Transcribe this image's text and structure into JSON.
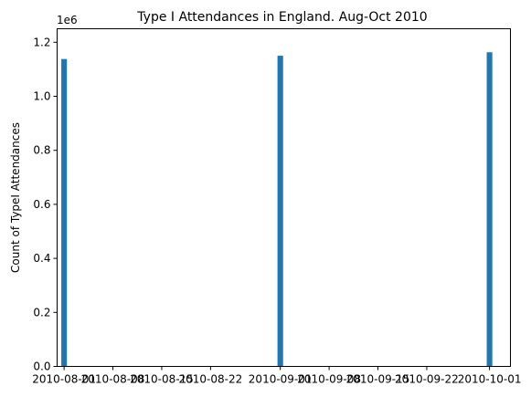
{
  "chart_data": {
    "type": "bar",
    "title": "Type I Attendances in England. Aug-Oct 2010",
    "xlabel": "",
    "ylabel": "Count of TypeI Attendances",
    "y_offset_text": "1e6",
    "x_range": [
      "2010-07-31",
      "2010-10-04"
    ],
    "ylim": [
      0,
      1.25
    ],
    "y_ticks": [
      0.0,
      0.2,
      0.4,
      0.6,
      0.8,
      1.0,
      1.2
    ],
    "y_tick_labels": [
      "0.0",
      "0.2",
      "0.4",
      "0.6",
      "0.8",
      "1.0",
      "1.2"
    ],
    "x_ticks": [
      "2010-08-01",
      "2010-08-08",
      "2010-08-15",
      "2010-08-22",
      "2010-09-01",
      "2010-09-08",
      "2010-09-15",
      "2010-09-22",
      "2010-10-01"
    ],
    "x_tick_labels": [
      "2010-08-01",
      "2010-08-08",
      "2010-08-15",
      "2010-08-22",
      "2010-09-01",
      "2010-09-08",
      "2010-09-15",
      "2010-09-22",
      "2010-10-01"
    ],
    "series": [
      {
        "x": [
          "2010-08-01",
          "2010-09-01",
          "2010-10-01"
        ],
        "values": [
          1138000,
          1150000,
          1163000
        ]
      }
    ],
    "color": "#1f77b4",
    "grid": false,
    "legend": "none"
  }
}
